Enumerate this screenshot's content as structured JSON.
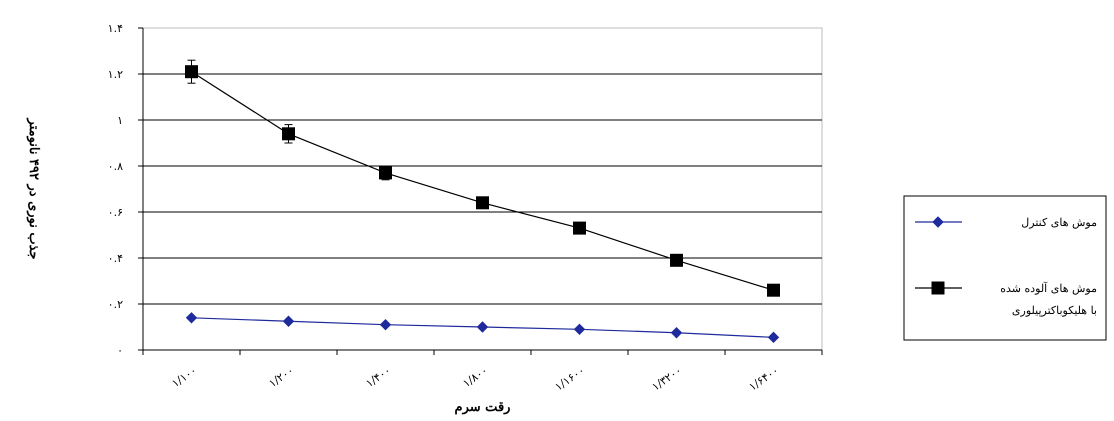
{
  "chart_data": {
    "type": "line",
    "title": "",
    "xlabel": "رقت سرم",
    "ylabel": "جذب نوری در ۴۹۲ نانومتر",
    "categories": [
      "۱/۱۰۰",
      "۱/۲۰۰",
      "۱/۴۰۰",
      "۱/۸۰۰",
      "۱/۱۶۰۰",
      "۱/۳۲۰۰",
      "۱/۶۴۰۰"
    ],
    "ylim": [
      0,
      1.4
    ],
    "y_ticks": [
      0,
      0.2,
      0.4,
      0.6,
      0.8,
      1,
      1.2,
      1.4
    ],
    "y_tick_labels": [
      "۰",
      "۰.۲",
      "۰.۴",
      "۰.۶",
      "۰.۸",
      "۱",
      "۱.۲",
      "۱.۴"
    ],
    "grid": "horizontal",
    "legend_position": "right",
    "series": [
      {
        "name": "موش های کنترل",
        "marker": "diamond",
        "color": "#1f2a9c",
        "values": [
          0.14,
          0.125,
          0.11,
          0.1,
          0.09,
          0.075,
          0.055
        ],
        "error": null
      },
      {
        "name": "موش های آلوده شده با هلیکوباکترپیلوری",
        "marker": "square",
        "color": "#000000",
        "values": [
          1.21,
          0.94,
          0.77,
          0.64,
          0.53,
          0.39,
          0.26
        ],
        "error": [
          0.05,
          0.04,
          0.03,
          0.02,
          0.0,
          0.0,
          0.0
        ]
      }
    ]
  }
}
